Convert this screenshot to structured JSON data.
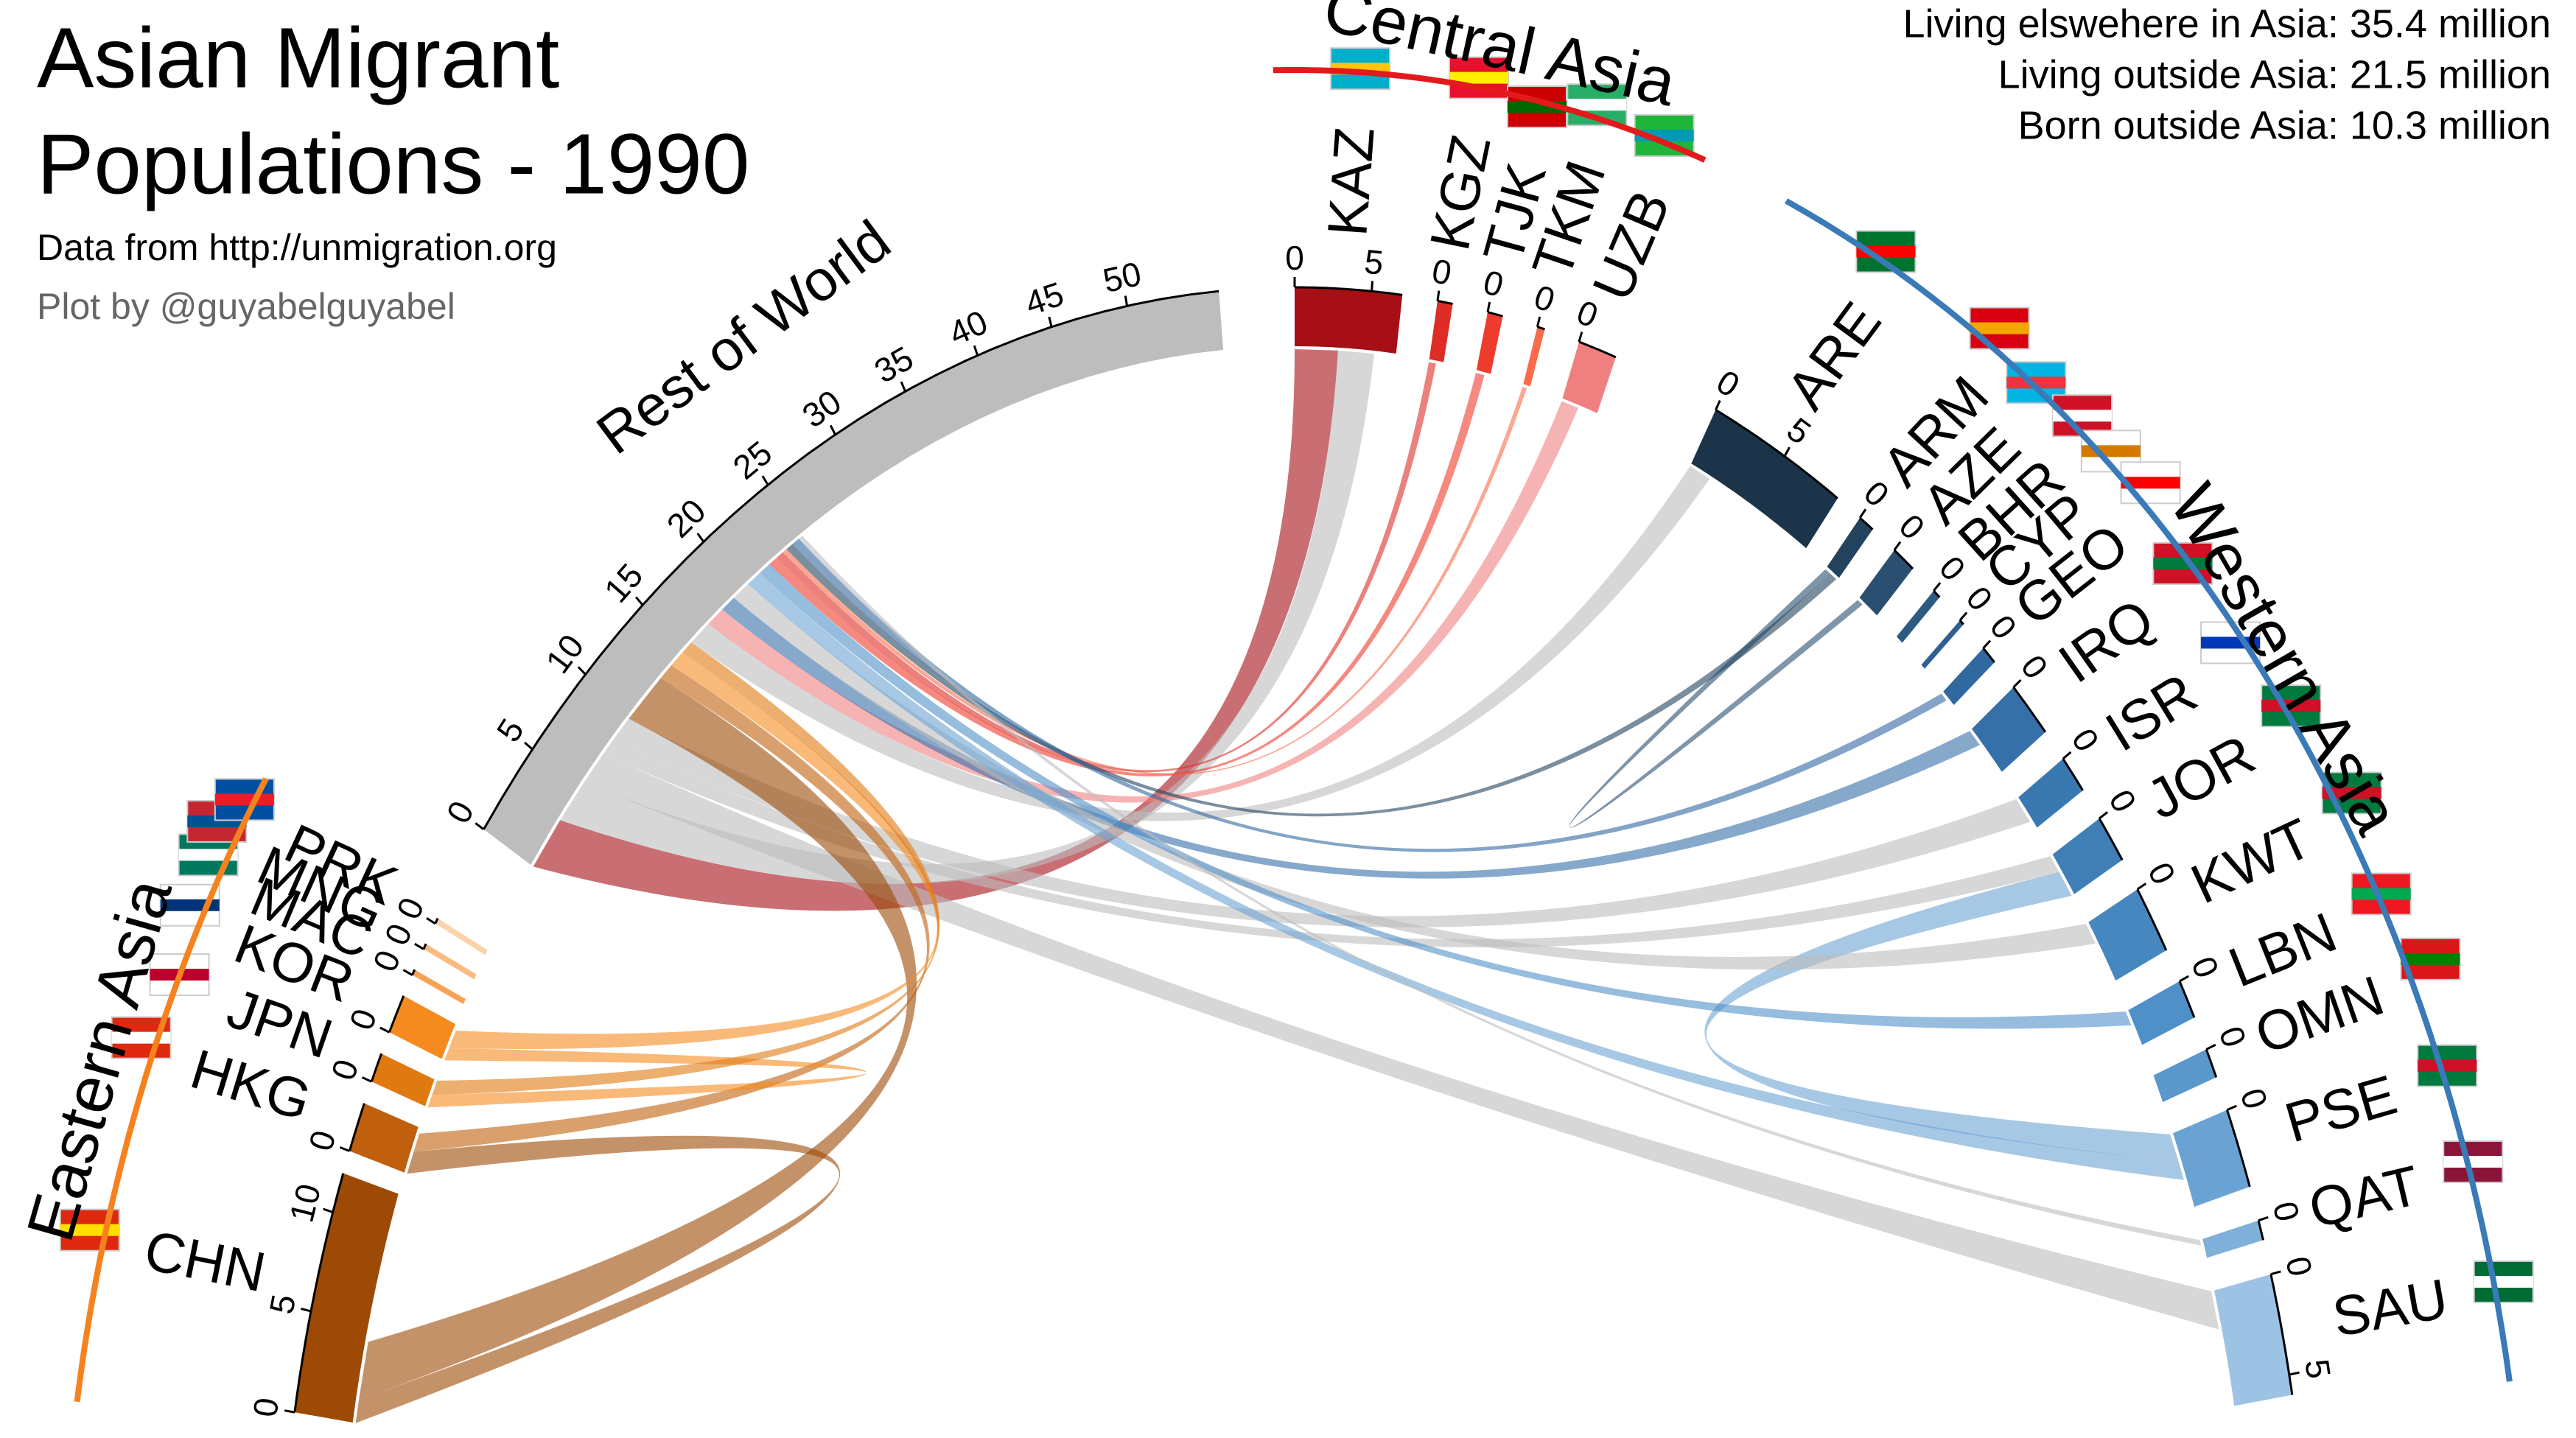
{
  "chart_data": {
    "type": "chord",
    "title": [
      "Asian Migrant",
      "Populations - 1990"
    ],
    "subtitle": "Data from http://unmigration.org",
    "credit": "Plot by @guyabelguyabel",
    "stats": [
      "Living elswehere in Asia: 35.4 million",
      "Living outside Asia: 21.5 million",
      "Born outside Asia: 10.3 million"
    ],
    "groups": [
      {
        "name": "Eastern Asia",
        "color": "#f5821f",
        "nodes": [
          {
            "name": "CHN",
            "value": 12,
            "color": "#9c4a05",
            "ticks": [
              0,
              5,
              10
            ]
          },
          {
            "name": "HKG",
            "value": 2.5,
            "color": "#c0600e",
            "ticks": [
              0
            ]
          },
          {
            "name": "JPN",
            "value": 1.5,
            "color": "#e07a10",
            "ticks": [
              0
            ]
          },
          {
            "name": "KOR",
            "value": 2,
            "color": "#f58a1f",
            "ticks": [
              0
            ]
          },
          {
            "name": "MAC",
            "value": 0.3,
            "color": "#f7a355",
            "ticks": [
              0
            ]
          },
          {
            "name": "MNG",
            "value": 0.3,
            "color": "#f9bb80",
            "ticks": [
              0
            ]
          },
          {
            "name": "PRK",
            "value": 0.3,
            "color": "#fbd3aa",
            "ticks": [
              0
            ]
          }
        ]
      },
      {
        "nodes": [
          {
            "name": "Rest of World",
            "value": 56,
            "color": "#bdbdbd",
            "ticks": [
              0,
              5,
              10,
              15,
              20,
              25,
              30,
              35,
              40,
              45,
              50
            ]
          }
        ]
      },
      {
        "name": "Central Asia",
        "color": "#e31a1c",
        "nodes": [
          {
            "name": "KAZ",
            "value": 7,
            "color": "#a50f15",
            "ticks": [
              0,
              5
            ]
          },
          {
            "name": "KGZ",
            "value": 1,
            "color": "#de2d26",
            "ticks": [
              0
            ]
          },
          {
            "name": "TJK",
            "value": 1,
            "color": "#ef3b2c",
            "ticks": [
              0
            ]
          },
          {
            "name": "TKM",
            "value": 0.5,
            "color": "#fb6a4a",
            "ticks": [
              0
            ]
          },
          {
            "name": "UZB",
            "value": 2.5,
            "color": "#f08080",
            "ticks": [
              0
            ]
          }
        ]
      },
      {
        "name": "Western Asia",
        "color": "#3a7ab8",
        "nodes": [
          {
            "name": "ARE",
            "value": 9,
            "color": "#1b3449",
            "ticks": [
              0,
              5
            ]
          },
          {
            "name": "ARM",
            "value": 1,
            "color": "#23425e",
            "ticks": [
              0
            ]
          },
          {
            "name": "AZE",
            "value": 1.5,
            "color": "#2a4f70",
            "ticks": [
              0
            ]
          },
          {
            "name": "BHR",
            "value": 0.5,
            "color": "#2d5a80",
            "ticks": [
              0
            ]
          },
          {
            "name": "CYP",
            "value": 0.3,
            "color": "#2f6090",
            "ticks": [
              0
            ]
          },
          {
            "name": "GEO",
            "value": 1,
            "color": "#3068a0",
            "ticks": [
              0
            ]
          },
          {
            "name": "IRQ",
            "value": 3,
            "color": "#3570a8",
            "ticks": [
              0
            ]
          },
          {
            "name": "ISR",
            "value": 2,
            "color": "#3a78b0",
            "ticks": [
              0
            ]
          },
          {
            "name": "JOR",
            "value": 2.5,
            "color": "#3f7fb5",
            "ticks": [
              0
            ]
          },
          {
            "name": "KWT",
            "value": 3.5,
            "color": "#4787c0",
            "ticks": [
              0
            ]
          },
          {
            "name": "LBN",
            "value": 2,
            "color": "#5090c8",
            "ticks": [
              0
            ]
          },
          {
            "name": "OMN",
            "value": 1.5,
            "color": "#5a98cc",
            "ticks": [
              0
            ]
          },
          {
            "name": "PSE",
            "value": 4,
            "color": "#6aa3d3",
            "ticks": [
              0
            ]
          },
          {
            "name": "QAT",
            "value": 1,
            "color": "#7eb0da",
            "ticks": [
              0
            ]
          },
          {
            "name": "SAU",
            "value": 6,
            "color": "#9cc3e4",
            "ticks": [
              0,
              5
            ]
          }
        ]
      }
    ],
    "flows": [
      {
        "from": "KAZ",
        "to": "Rest of World",
        "value": 3
      },
      {
        "from": "Rest of World",
        "to": "KAZ",
        "value": 2.5
      },
      {
        "from": "Rest of World",
        "to": "SAU",
        "value": 2
      },
      {
        "from": "Rest of World",
        "to": "JOR",
        "value": 1
      },
      {
        "from": "Rest of World",
        "to": "ISR",
        "value": 1.5
      },
      {
        "from": "CHN",
        "to": "HKG",
        "value": 1.2
      },
      {
        "from": "CHN",
        "to": "Rest of World",
        "value": 3
      },
      {
        "from": "HKG",
        "to": "Rest of World",
        "value": 1
      },
      {
        "from": "KOR",
        "to": "JPN",
        "value": 0.7
      },
      {
        "from": "KOR",
        "to": "Rest of World",
        "value": 1
      },
      {
        "from": "JPN",
        "to": "Rest of World",
        "value": 0.8
      },
      {
        "from": "PSE",
        "to": "JOR",
        "value": 1.5
      },
      {
        "from": "Rest of World",
        "to": "ARE",
        "value": 1.5
      },
      {
        "from": "UZB",
        "to": "Rest of World",
        "value": 1.2
      },
      {
        "from": "IRQ",
        "to": "Rest of World",
        "value": 1
      },
      {
        "from": "Rest of World",
        "to": "KWT",
        "value": 1.2
      },
      {
        "from": "PSE",
        "to": "Rest of World",
        "value": 1
      },
      {
        "from": "LBN",
        "to": "Rest of World",
        "value": 0.8
      },
      {
        "from": "TJK",
        "to": "Rest of World",
        "value": 0.6
      },
      {
        "from": "KGZ",
        "to": "Rest of World",
        "value": 0.5
      },
      {
        "from": "TKM",
        "to": "Rest of World",
        "value": 0.3
      },
      {
        "from": "AZE",
        "to": "ARM",
        "value": 0.4
      },
      {
        "from": "ARM",
        "to": "Rest of World",
        "value": 0.5
      },
      {
        "from": "GEO",
        "to": "Rest of World",
        "value": 0.5
      },
      {
        "from": "Rest of World",
        "to": "QAT",
        "value": 0.3
      }
    ]
  }
}
